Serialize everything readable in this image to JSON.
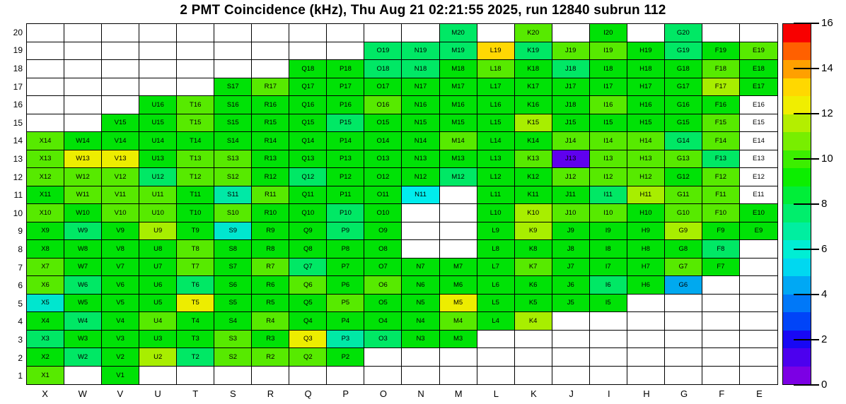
{
  "title": "2 PMT Coincidence (kHz), Thu Aug 21 02:21:55 2025, run 12840 subrun 112",
  "chart_data": {
    "type": "heatmap",
    "title": "2 PMT Coincidence (kHz), Thu Aug 21 02:21:55 2025, run 12840 subrun 112",
    "unit": "kHz",
    "x_categories": [
      "X",
      "W",
      "V",
      "U",
      "T",
      "S",
      "R",
      "Q",
      "P",
      "O",
      "N",
      "M",
      "L",
      "K",
      "J",
      "I",
      "H",
      "G",
      "F",
      "E"
    ],
    "y_categories_top_to_bottom": [
      "20",
      "19",
      "18",
      "17",
      "16",
      "15",
      "14",
      "13",
      "12",
      "11",
      "10",
      "9",
      "8",
      "7",
      "6",
      "5",
      "4",
      "3",
      "2",
      "1"
    ],
    "grid_on": true,
    "colorbar": {
      "min": 0,
      "max": 16,
      "tick_labels": [
        "0",
        "2",
        "4",
        "6",
        "8",
        "10",
        "12",
        "14",
        "16"
      ],
      "tick_values": [
        0,
        2,
        4,
        6,
        8,
        10,
        12,
        14,
        16
      ],
      "position": "right",
      "band_colors_bottom_to_top": [
        "#7C00E4",
        "#4C00EE",
        "#1808F4",
        "#0044F8",
        "#0078F8",
        "#00A8F4",
        "#00D8F0",
        "#00EED4",
        "#00EEA0",
        "#00EE6C",
        "#00EE38",
        "#0CEE00",
        "#3CEE00",
        "#78EE00",
        "#B4EE00",
        "#F0EE00",
        "#FFD800",
        "#FFA000",
        "#FF6000",
        "#F80000"
      ]
    },
    "palette_classes": {
      "g": "#00E206",
      "s": "#00E865",
      "t": "#00E9A6",
      "c": "#00E6CF",
      "c2": "#00EDED",
      "b": "#00A9EF",
      "p": "#5F00EE",
      "l": "#57EA00",
      "y2": "#A8EE00",
      "y": "#EDED00",
      "au": "#FFD803",
      "w": "#FFFFFF"
    },
    "class_value_estimates_khz": {
      "g": 9.3,
      "s": 8.4,
      "t": 7.2,
      "c": 6.4,
      "c2": 6.0,
      "b": 4.6,
      "p": 1.0,
      "l": 10.4,
      "y2": 11.2,
      "y": 12.5,
      "au": 13.2,
      "w": 0
    },
    "label_overrides": {
      "J16": "J18"
    },
    "rows": {
      "20": [
        "",
        "",
        "",
        "",
        "",
        "",
        "",
        "",
        "",
        "",
        "",
        "s",
        "",
        "l",
        "",
        "g",
        "",
        "s",
        "",
        ""
      ],
      "19": [
        "",
        "",
        "",
        "",
        "",
        "",
        "",
        "",
        "",
        "s",
        "s",
        "s",
        "au",
        "s",
        "l",
        "l",
        "g",
        "s",
        "g",
        "l"
      ],
      "18": [
        "",
        "",
        "",
        "",
        "",
        "",
        "",
        "g",
        "g",
        "s",
        "s",
        "g",
        "l",
        "g",
        "s",
        "g",
        "g",
        "g",
        "l",
        "g"
      ],
      "17": [
        "",
        "",
        "",
        "",
        "",
        "g",
        "l",
        "g",
        "g",
        "g",
        "g",
        "g",
        "g",
        "g",
        "g",
        "g",
        "g",
        "g",
        "y2",
        "g"
      ],
      "16": [
        "",
        "",
        "",
        "g",
        "l",
        "g",
        "g",
        "g",
        "g",
        "l",
        "g",
        "g",
        "g",
        "g",
        "g",
        "l",
        "g",
        "g",
        "g",
        "w"
      ],
      "15": [
        "",
        "",
        "g",
        "g",
        "l",
        "g",
        "g",
        "g",
        "s",
        "g",
        "g",
        "g",
        "g",
        "y2",
        "g",
        "g",
        "g",
        "g",
        "l",
        "w"
      ],
      "14": [
        "l",
        "g",
        "g",
        "g",
        "g",
        "g",
        "g",
        "g",
        "g",
        "g",
        "g",
        "l",
        "g",
        "g",
        "l",
        "l",
        "l",
        "s",
        "l",
        "w"
      ],
      "13": [
        "l",
        "y",
        "y",
        "g",
        "l",
        "l",
        "g",
        "g",
        "g",
        "g",
        "g",
        "g",
        "g",
        "l",
        "p",
        "l",
        "l",
        "l",
        "s",
        "w"
      ],
      "12": [
        "l",
        "l",
        "l",
        "s",
        "l",
        "l",
        "g",
        "s",
        "g",
        "g",
        "g",
        "s",
        "g",
        "g",
        "l",
        "l",
        "l",
        "g",
        "l",
        "w"
      ],
      "11": [
        "g",
        "l",
        "l",
        "l",
        "g",
        "t",
        "l",
        "g",
        "g",
        "g",
        "c2",
        "",
        "g",
        "g",
        "g",
        "s",
        "y2",
        "l",
        "l",
        "w"
      ],
      "10": [
        "l",
        "g",
        "l",
        "l",
        "g",
        "l",
        "g",
        "g",
        "s",
        "g",
        "",
        "",
        "g",
        "y2",
        "l",
        "l",
        "g",
        "l",
        "l",
        "g"
      ],
      "9": [
        "g",
        "s",
        "g",
        "y2",
        "g",
        "c",
        "g",
        "g",
        "s",
        "g",
        "",
        "",
        "g",
        "y2",
        "g",
        "g",
        "g",
        "y2",
        "g",
        "g"
      ],
      "8": [
        "g",
        "g",
        "g",
        "g",
        "l",
        "g",
        "g",
        "g",
        "g",
        "g",
        "",
        "",
        "g",
        "g",
        "g",
        "g",
        "g",
        "g",
        "s",
        ""
      ],
      "7": [
        "l",
        "g",
        "g",
        "g",
        "l",
        "g",
        "l",
        "s",
        "g",
        "g",
        "g",
        "g",
        "g",
        "l",
        "g",
        "g",
        "g",
        "l",
        "g",
        ""
      ],
      "6": [
        "l",
        "s",
        "g",
        "g",
        "s",
        "g",
        "g",
        "l",
        "g",
        "l",
        "g",
        "g",
        "g",
        "g",
        "g",
        "s",
        "g",
        "b",
        "",
        ""
      ],
      "5": [
        "c",
        "g",
        "g",
        "g",
        "y",
        "g",
        "g",
        "g",
        "l",
        "g",
        "g",
        "y",
        "g",
        "g",
        "g",
        "g",
        "",
        "",
        "",
        ""
      ],
      "4": [
        "g",
        "s",
        "g",
        "l",
        "g",
        "g",
        "l",
        "g",
        "g",
        "g",
        "g",
        "l",
        "g",
        "y2",
        "",
        "",
        "",
        "",
        "",
        ""
      ],
      "3": [
        "s",
        "g",
        "g",
        "g",
        "g",
        "l",
        "g",
        "y",
        "t",
        "s",
        "g",
        "g",
        "",
        "",
        "",
        "",
        "",
        "",
        "",
        ""
      ],
      "2": [
        "g",
        "s",
        "g",
        "y2",
        "s",
        "l",
        "l",
        "l",
        "g",
        "",
        "",
        "",
        "",
        "",
        "",
        "",
        "",
        "",
        "",
        ""
      ],
      "1": [
        "l",
        "",
        "g",
        "",
        "",
        "",
        "",
        "",
        "",
        "",
        "",
        "",
        "",
        "",
        "",
        "",
        "",
        "",
        "",
        ""
      ]
    }
  }
}
